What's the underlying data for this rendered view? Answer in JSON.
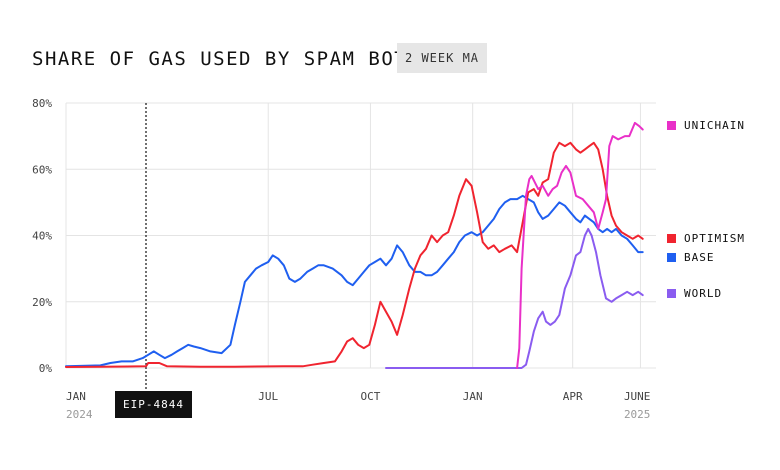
{
  "header": {
    "title": "SHARE OF GAS USED BY SPAM BOTS",
    "badge": "2 WEEK MA"
  },
  "annotation": {
    "label": "EIP-4844"
  },
  "colors": {
    "unichain": "#e930c8",
    "optimism": "#f0242f",
    "base": "#1f5ff0",
    "world": "#8a5cf0",
    "grid": "#e4e4e4",
    "axis_text": "#444444",
    "year_text": "#9a9a9a"
  },
  "chart_data": {
    "type": "line",
    "title": "SHARE OF GAS USED BY SPAM BOTS",
    "subtitle": "2 WEEK MA",
    "ylim": [
      0,
      80
    ],
    "y_ticks": [
      0,
      20,
      40,
      60,
      80
    ],
    "y_tick_labels": [
      "0%",
      "20%",
      "40%",
      "60%",
      "80%"
    ],
    "x_ticks": [
      "2024-01-01",
      "2024-07-01",
      "2024-10-01",
      "2025-01-01",
      "2025-04-01",
      "2025-06-01"
    ],
    "x_tick_labels": [
      "JAN",
      "JUL",
      "OCT",
      "JAN",
      "APR",
      "JUNE"
    ],
    "x_year_labels": [
      {
        "at": "2024-01-01",
        "label": "2024"
      },
      {
        "at": "2025-06-01",
        "label": "2025"
      }
    ],
    "xlim": [
      "2024-01-01",
      "2025-06-15"
    ],
    "vline": {
      "x": "2024-03-13",
      "label": "EIP-4844"
    },
    "grid": true,
    "legend_placement": "right",
    "series": [
      {
        "name": "UNICHAIN",
        "color": "#e930c8",
        "points": [
          [
            "2025-02-10",
            0
          ],
          [
            "2025-02-12",
            6
          ],
          [
            "2025-02-14",
            30
          ],
          [
            "2025-02-18",
            52
          ],
          [
            "2025-02-21",
            57
          ],
          [
            "2025-02-23",
            58
          ],
          [
            "2025-03-01",
            54
          ],
          [
            "2025-03-05",
            55
          ],
          [
            "2025-03-10",
            52
          ],
          [
            "2025-03-14",
            54
          ],
          [
            "2025-03-18",
            55
          ],
          [
            "2025-03-22",
            59
          ],
          [
            "2025-03-26",
            61
          ],
          [
            "2025-03-30",
            59
          ],
          [
            "2025-04-04",
            52
          ],
          [
            "2025-04-10",
            51
          ],
          [
            "2025-04-15",
            49
          ],
          [
            "2025-04-20",
            47
          ],
          [
            "2025-04-24",
            42
          ],
          [
            "2025-04-28",
            47
          ],
          [
            "2025-05-01",
            51
          ],
          [
            "2025-05-04",
            67
          ],
          [
            "2025-05-07",
            70
          ],
          [
            "2025-05-12",
            69
          ],
          [
            "2025-05-18",
            70
          ],
          [
            "2025-05-22",
            70
          ],
          [
            "2025-05-27",
            74
          ],
          [
            "2025-05-31",
            73
          ],
          [
            "2025-06-03",
            72
          ]
        ]
      },
      {
        "name": "OPTIMISM",
        "color": "#f0242f",
        "points": [
          [
            "2024-01-01",
            0.3
          ],
          [
            "2024-02-01",
            0.4
          ],
          [
            "2024-03-13",
            0.5
          ],
          [
            "2024-03-15",
            1.5
          ],
          [
            "2024-03-25",
            1.5
          ],
          [
            "2024-04-01",
            0.5
          ],
          [
            "2024-05-01",
            0.4
          ],
          [
            "2024-06-01",
            0.4
          ],
          [
            "2024-07-15",
            0.5
          ],
          [
            "2024-08-01",
            0.5
          ],
          [
            "2024-08-10",
            1
          ],
          [
            "2024-08-20",
            1.5
          ],
          [
            "2024-08-30",
            2
          ],
          [
            "2024-09-05",
            5
          ],
          [
            "2024-09-10",
            8
          ],
          [
            "2024-09-15",
            9
          ],
          [
            "2024-09-20",
            7
          ],
          [
            "2024-09-25",
            6
          ],
          [
            "2024-09-30",
            7
          ],
          [
            "2024-10-05",
            13
          ],
          [
            "2024-10-10",
            20
          ],
          [
            "2024-10-15",
            17
          ],
          [
            "2024-10-20",
            14
          ],
          [
            "2024-10-25",
            10
          ],
          [
            "2024-10-30",
            16
          ],
          [
            "2024-11-05",
            24
          ],
          [
            "2024-11-10",
            30
          ],
          [
            "2024-11-15",
            34
          ],
          [
            "2024-11-20",
            36
          ],
          [
            "2024-11-25",
            40
          ],
          [
            "2024-11-30",
            38
          ],
          [
            "2024-12-05",
            40
          ],
          [
            "2024-12-10",
            41
          ],
          [
            "2024-12-15",
            46
          ],
          [
            "2024-12-20",
            52
          ],
          [
            "2024-12-26",
            57
          ],
          [
            "2024-12-31",
            55
          ],
          [
            "2025-01-05",
            47
          ],
          [
            "2025-01-10",
            38
          ],
          [
            "2025-01-15",
            36
          ],
          [
            "2025-01-20",
            37
          ],
          [
            "2025-01-25",
            35
          ],
          [
            "2025-01-30",
            36
          ],
          [
            "2025-02-05",
            37
          ],
          [
            "2025-02-10",
            35
          ],
          [
            "2025-02-15",
            44
          ],
          [
            "2025-02-20",
            53
          ],
          [
            "2025-02-25",
            54
          ],
          [
            "2025-03-01",
            52
          ],
          [
            "2025-03-05",
            56
          ],
          [
            "2025-03-10",
            57
          ],
          [
            "2025-03-15",
            65
          ],
          [
            "2025-03-20",
            68
          ],
          [
            "2025-03-25",
            67
          ],
          [
            "2025-03-30",
            68
          ],
          [
            "2025-04-04",
            66
          ],
          [
            "2025-04-08",
            65
          ],
          [
            "2025-04-12",
            66
          ],
          [
            "2025-04-16",
            67
          ],
          [
            "2025-04-20",
            68
          ],
          [
            "2025-04-24",
            66
          ],
          [
            "2025-04-28",
            60
          ],
          [
            "2025-05-02",
            52
          ],
          [
            "2025-05-06",
            46
          ],
          [
            "2025-05-10",
            43
          ],
          [
            "2025-05-15",
            41
          ],
          [
            "2025-05-20",
            40
          ],
          [
            "2025-05-25",
            39
          ],
          [
            "2025-05-30",
            40
          ],
          [
            "2025-06-03",
            39
          ]
        ]
      },
      {
        "name": "BASE",
        "color": "#1f5ff0",
        "points": [
          [
            "2024-01-01",
            0.5
          ],
          [
            "2024-02-01",
            0.8
          ],
          [
            "2024-02-10",
            1.5
          ],
          [
            "2024-02-20",
            2
          ],
          [
            "2024-03-01",
            2
          ],
          [
            "2024-03-10",
            3
          ],
          [
            "2024-03-15",
            4
          ],
          [
            "2024-03-20",
            5
          ],
          [
            "2024-03-25",
            4
          ],
          [
            "2024-03-30",
            3
          ],
          [
            "2024-04-05",
            4
          ],
          [
            "2024-04-10",
            5
          ],
          [
            "2024-04-15",
            6
          ],
          [
            "2024-04-20",
            7
          ],
          [
            "2024-04-25",
            6.5
          ],
          [
            "2024-05-01",
            6
          ],
          [
            "2024-05-10",
            5
          ],
          [
            "2024-05-20",
            4.5
          ],
          [
            "2024-05-28",
            7
          ],
          [
            "2024-06-01",
            13
          ],
          [
            "2024-06-06",
            20
          ],
          [
            "2024-06-10",
            26
          ],
          [
            "2024-06-15",
            28
          ],
          [
            "2024-06-20",
            30
          ],
          [
            "2024-06-25",
            31
          ],
          [
            "2024-07-01",
            32
          ],
          [
            "2024-07-05",
            34
          ],
          [
            "2024-07-10",
            33
          ],
          [
            "2024-07-15",
            31
          ],
          [
            "2024-07-20",
            27
          ],
          [
            "2024-07-25",
            26
          ],
          [
            "2024-07-30",
            27
          ],
          [
            "2024-08-05",
            29
          ],
          [
            "2024-08-10",
            30
          ],
          [
            "2024-08-15",
            31
          ],
          [
            "2024-08-20",
            31
          ],
          [
            "2024-08-28",
            30
          ],
          [
            "2024-09-05",
            28
          ],
          [
            "2024-09-10",
            26
          ],
          [
            "2024-09-15",
            25
          ],
          [
            "2024-09-20",
            27
          ],
          [
            "2024-09-25",
            29
          ],
          [
            "2024-09-30",
            31
          ],
          [
            "2024-10-05",
            32
          ],
          [
            "2024-10-10",
            33
          ],
          [
            "2024-10-15",
            31
          ],
          [
            "2024-10-20",
            33
          ],
          [
            "2024-10-25",
            37
          ],
          [
            "2024-10-30",
            35
          ],
          [
            "2024-11-05",
            31
          ],
          [
            "2024-11-10",
            29
          ],
          [
            "2024-11-15",
            29
          ],
          [
            "2024-11-20",
            28
          ],
          [
            "2024-11-25",
            28
          ],
          [
            "2024-11-30",
            29
          ],
          [
            "2024-12-05",
            31
          ],
          [
            "2024-12-10",
            33
          ],
          [
            "2024-12-15",
            35
          ],
          [
            "2024-12-20",
            38
          ],
          [
            "2024-12-25",
            40
          ],
          [
            "2024-12-31",
            41
          ],
          [
            "2025-01-05",
            40
          ],
          [
            "2025-01-10",
            41
          ],
          [
            "2025-01-15",
            43
          ],
          [
            "2025-01-20",
            45
          ],
          [
            "2025-01-25",
            48
          ],
          [
            "2025-01-30",
            50
          ],
          [
            "2025-02-04",
            51
          ],
          [
            "2025-02-10",
            51
          ],
          [
            "2025-02-15",
            52
          ],
          [
            "2025-02-20",
            51
          ],
          [
            "2025-02-25",
            50
          ],
          [
            "2025-03-01",
            47
          ],
          [
            "2025-03-05",
            45
          ],
          [
            "2025-03-10",
            46
          ],
          [
            "2025-03-15",
            48
          ],
          [
            "2025-03-20",
            50
          ],
          [
            "2025-03-25",
            49
          ],
          [
            "2025-03-30",
            47
          ],
          [
            "2025-04-04",
            45
          ],
          [
            "2025-04-08",
            44
          ],
          [
            "2025-04-12",
            46
          ],
          [
            "2025-04-16",
            45
          ],
          [
            "2025-04-20",
            44
          ],
          [
            "2025-04-24",
            42
          ],
          [
            "2025-04-28",
            41
          ],
          [
            "2025-05-02",
            42
          ],
          [
            "2025-05-06",
            41
          ],
          [
            "2025-05-10",
            42
          ],
          [
            "2025-05-15",
            40
          ],
          [
            "2025-05-20",
            39
          ],
          [
            "2025-05-25",
            37
          ],
          [
            "2025-05-30",
            35
          ],
          [
            "2025-06-03",
            35
          ]
        ]
      },
      {
        "name": "WORLD",
        "color": "#8a5cf0",
        "points": [
          [
            "2024-10-15",
            0
          ],
          [
            "2024-11-01",
            0
          ],
          [
            "2024-12-01",
            0
          ],
          [
            "2025-01-01",
            0
          ],
          [
            "2025-02-01",
            0
          ],
          [
            "2025-02-14",
            0
          ],
          [
            "2025-02-18",
            1
          ],
          [
            "2025-02-21",
            5
          ],
          [
            "2025-02-25",
            11
          ],
          [
            "2025-03-01",
            15
          ],
          [
            "2025-03-05",
            17
          ],
          [
            "2025-03-08",
            14
          ],
          [
            "2025-03-12",
            13
          ],
          [
            "2025-03-16",
            14
          ],
          [
            "2025-03-20",
            16
          ],
          [
            "2025-03-25",
            24
          ],
          [
            "2025-03-30",
            28
          ],
          [
            "2025-04-04",
            34
          ],
          [
            "2025-04-08",
            35
          ],
          [
            "2025-04-12",
            40
          ],
          [
            "2025-04-15",
            42
          ],
          [
            "2025-04-18",
            40
          ],
          [
            "2025-04-22",
            35
          ],
          [
            "2025-04-26",
            28
          ],
          [
            "2025-05-01",
            21
          ],
          [
            "2025-05-06",
            20
          ],
          [
            "2025-05-10",
            21
          ],
          [
            "2025-05-15",
            22
          ],
          [
            "2025-05-20",
            23
          ],
          [
            "2025-05-25",
            22
          ],
          [
            "2025-05-30",
            23
          ],
          [
            "2025-06-03",
            22
          ]
        ]
      }
    ]
  },
  "legend": [
    {
      "name": "UNICHAIN",
      "color": "#e930c8"
    },
    {
      "name": "OPTIMISM",
      "color": "#f0242f"
    },
    {
      "name": "BASE",
      "color": "#1f5ff0"
    },
    {
      "name": "WORLD",
      "color": "#8a5cf0"
    }
  ]
}
